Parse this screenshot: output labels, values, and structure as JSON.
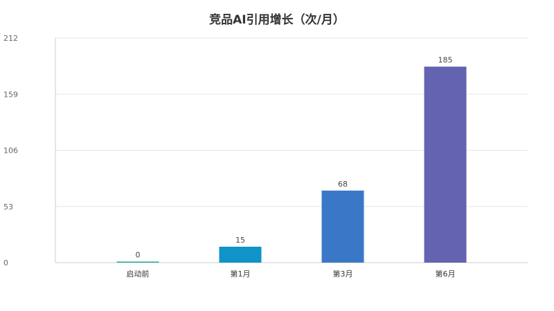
{
  "chart_data": {
    "type": "bar",
    "title": "竞品AI引用增长（次/月）",
    "categories": [
      "启动前",
      "第1月",
      "第3月",
      "第6月"
    ],
    "values": [
      0,
      15,
      68,
      185
    ],
    "colors": [
      "#26a69a",
      "#0f93c8",
      "#3a78c7",
      "#6363b2"
    ],
    "y_ticks": [
      0,
      53,
      106,
      159,
      212
    ],
    "ylim": [
      0,
      212
    ],
    "grid": true,
    "xlabel": "",
    "ylabel": ""
  }
}
